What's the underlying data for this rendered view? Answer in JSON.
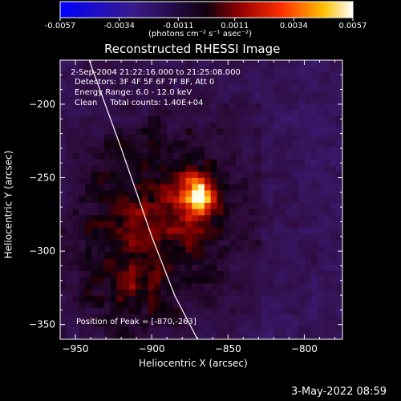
{
  "chart_data": {
    "type": "heatmap",
    "title": "Reconstructed RHESSI Image",
    "colorbar": {
      "colormap": "black-purple-red-orange-yellow-white",
      "ticks": [
        "-0.0057",
        "-0.0034",
        "-0.0011",
        "0.0011",
        "0.0034",
        "0.0057"
      ],
      "range": [
        -0.0057,
        0.0057
      ],
      "unit_label": "(photons cm⁻² s⁻¹ asec⁻²)"
    },
    "xlabel": "Heliocentric X (arcsec)",
    "ylabel": "Heliocentric Y (arcsec)",
    "xlim": [
      -960,
      -775
    ],
    "ylim": [
      -360,
      -170
    ],
    "x_ticks": [
      -950,
      -900,
      -850,
      -800
    ],
    "y_ticks": [
      -200,
      -250,
      -300,
      -350
    ],
    "x_tick_labels": [
      "−950",
      "−900",
      "−850",
      "−800"
    ],
    "y_tick_labels": [
      "−200",
      "−250",
      "−300",
      "−350"
    ],
    "annotations": [
      "2-Sep-2004 21:22:16.000 to 21:25:08.000",
      "Detectors: 3F 4F 5F 6F 7F 8F, Att 0",
      "Energy Range: 6.0 - 12.0 keV",
      "Clean     Total counts: 1.40E+04"
    ],
    "peak_label": "Position of Peak = [-870,-263]",
    "peak": {
      "x": -870,
      "y": -263
    },
    "limb_curve": [
      [
        -941,
        -170
      ],
      [
        -920,
        -230
      ],
      [
        -900,
        -290
      ],
      [
        -885,
        -330
      ],
      [
        -870,
        -360
      ]
    ],
    "grid": false,
    "colors": {
      "background": "#000000",
      "text": "#ffffff",
      "limb": "#ffffff"
    }
  },
  "footer": {
    "timestamp": "3-May-2022 08:59"
  }
}
